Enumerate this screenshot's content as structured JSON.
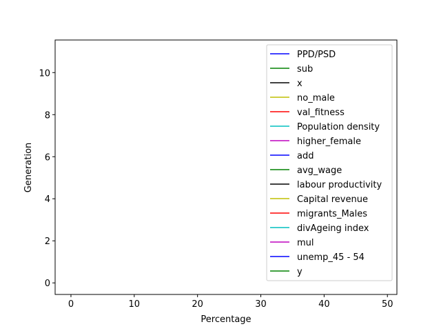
{
  "chart_data": {
    "type": "line",
    "title": "",
    "xlabel": "Percentage",
    "ylabel": "Generation",
    "xlim": [
      -2.5,
      51.5
    ],
    "ylim": [
      -0.55,
      11.55
    ],
    "xticks": [
      0,
      10,
      20,
      30,
      40,
      50
    ],
    "yticks": [
      0,
      2,
      4,
      6,
      8,
      10
    ],
    "grid": false,
    "legend": "upper right",
    "series": [
      {
        "name": "PPD/PSD",
        "color": "#0000ff",
        "values": []
      },
      {
        "name": "sub",
        "color": "#008000",
        "values": []
      },
      {
        "name": "x",
        "color": "#000000",
        "values": []
      },
      {
        "name": "no_male",
        "color": "#bfbf00",
        "values": []
      },
      {
        "name": "val_fitness",
        "color": "#ff0000",
        "values": []
      },
      {
        "name": "Population density",
        "color": "#00bfbf",
        "values": []
      },
      {
        "name": "higher_female",
        "color": "#bf00bf",
        "values": []
      },
      {
        "name": "add",
        "color": "#0000ff",
        "values": []
      },
      {
        "name": "avg_wage",
        "color": "#008000",
        "values": []
      },
      {
        "name": "labour productivity",
        "color": "#000000",
        "values": []
      },
      {
        "name": "Capital revenue",
        "color": "#bfbf00",
        "values": []
      },
      {
        "name": "migrants_Males",
        "color": "#ff0000",
        "values": []
      },
      {
        "name": "divAgeing index",
        "color": "#00bfbf",
        "values": []
      },
      {
        "name": "mul",
        "color": "#bf00bf",
        "values": []
      },
      {
        "name": "unemp_45 - 54",
        "color": "#0000ff",
        "values": []
      },
      {
        "name": "y",
        "color": "#008000",
        "values": []
      }
    ]
  }
}
